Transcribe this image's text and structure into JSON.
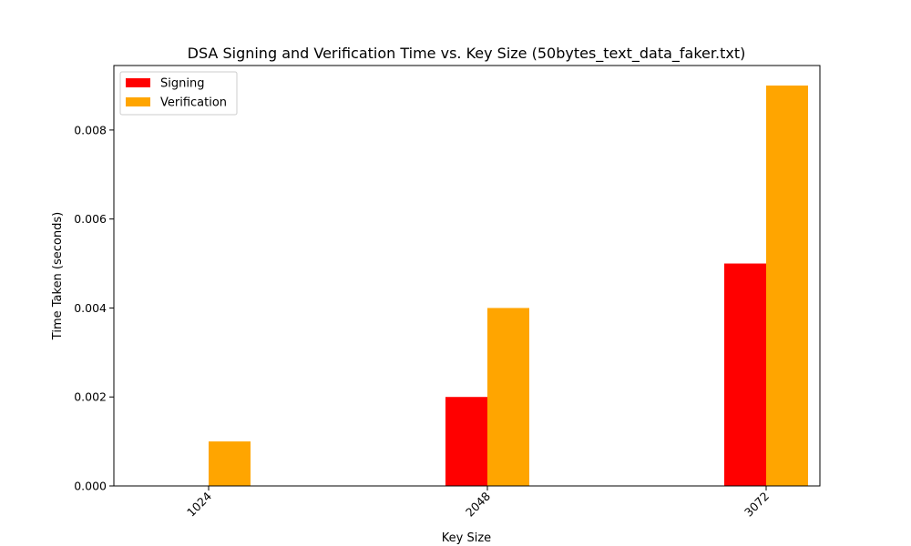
{
  "chart_data": {
    "type": "bar",
    "title": "DSA Signing and Verification Time vs. Key Size (50bytes_text_data_faker.txt)",
    "xlabel": "Key Size",
    "ylabel": "Time Taken (seconds)",
    "categories": [
      "1024",
      "2048",
      "3072"
    ],
    "series": [
      {
        "name": "Signing",
        "color": "#ff0000",
        "values": [
          0.0,
          0.002,
          0.005
        ]
      },
      {
        "name": "Verification",
        "color": "#ffa500",
        "values": [
          0.001,
          0.004,
          0.009
        ]
      }
    ],
    "ylim": [
      0,
      0.00945
    ],
    "yticks": [
      "0.000",
      "0.002",
      "0.004",
      "0.006",
      "0.008"
    ],
    "ytick_values": [
      0,
      0.002,
      0.004,
      0.006,
      0.008
    ],
    "legend_position": "top-left",
    "grid": false
  }
}
